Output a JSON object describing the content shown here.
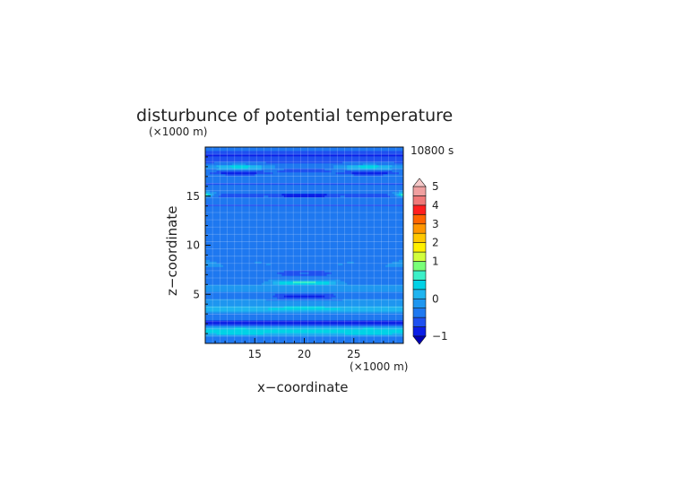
{
  "chart_data": {
    "type": "heatmap",
    "title": "disturbunce of potential temperature",
    "time_label": "10800 s",
    "xlabel": "x−coordinate",
    "ylabel": "z−coordinate",
    "x_unit": "(×1000 m)",
    "y_unit": "(×1000 m)",
    "xlim": [
      10,
      30
    ],
    "ylim": [
      0,
      20
    ],
    "xticks": [
      15,
      20,
      25
    ],
    "xtick_labels": [
      "15",
      "20",
      "25"
    ],
    "yticks": [
      5,
      10,
      15
    ],
    "ytick_labels": [
      "5",
      "10",
      "15"
    ],
    "grid": true,
    "colorbar": {
      "levels": [
        -1,
        -0.75,
        -0.5,
        -0.25,
        0,
        0.25,
        0.5,
        0.75,
        1,
        1.5,
        2,
        2.5,
        3,
        3.5,
        4,
        4.5,
        5
      ],
      "labels": [
        "−1",
        "0",
        "1",
        "2",
        "3",
        "4",
        "5"
      ],
      "label_values": [
        -1,
        0,
        1,
        2,
        3,
        4,
        5
      ],
      "colors": [
        "#0000b4",
        "#0a1ee6",
        "#1e50f0",
        "#1e78f0",
        "#1e96f0",
        "#1eb4f0",
        "#00d2e6",
        "#3cf0c8",
        "#78ff78",
        "#d2ff3c",
        "#fff000",
        "#ffc800",
        "#ff9600",
        "#ff6400",
        "#ff1e1e",
        "#f07878",
        "#f0a0a0",
        "#f5c8c8"
      ]
    },
    "field": {
      "background": -0.3,
      "bands": [
        {
          "z": 0.55,
          "v": -0.3,
          "th": 0.5,
          "shape": "flat"
        },
        {
          "z": 1.25,
          "v": 0.85,
          "th": 0.28,
          "shape": "sides"
        },
        {
          "z": 1.25,
          "v": 0.45,
          "th": 0.35,
          "shape": "flat"
        },
        {
          "z": 2.15,
          "v": -1.0,
          "th": 0.25,
          "shape": "flat"
        },
        {
          "z": 2.8,
          "v": -0.5,
          "th": 0.4,
          "shape": "flat"
        },
        {
          "z": 3.55,
          "v": 0.25,
          "th": 0.35,
          "shape": "flat"
        },
        {
          "z": 3.65,
          "v": 0.7,
          "th": 0.2,
          "shape": "center"
        },
        {
          "z": 4.1,
          "v": -0.15,
          "th": 0.4,
          "shape": "flat"
        },
        {
          "z": 4.85,
          "v": -0.85,
          "th": 0.32,
          "shape": "center"
        },
        {
          "z": 5.6,
          "v": -0.2,
          "th": 0.4,
          "shape": "flat"
        },
        {
          "z": 6.2,
          "v": 0.6,
          "th": 0.25,
          "shape": "center"
        },
        {
          "z": 7.2,
          "v": -0.65,
          "th": 0.35,
          "shape": "center"
        },
        {
          "z": 8.2,
          "v": -0.15,
          "th": 0.45,
          "shape": "flat"
        },
        {
          "z": 9.2,
          "v": -0.5,
          "th": 0.45,
          "shape": "arc",
          "d": 2.0
        },
        {
          "z": 10.5,
          "v": -0.35,
          "th": 0.45,
          "shape": "arc",
          "d": 2.2
        },
        {
          "z": 12.0,
          "v": -0.45,
          "th": 0.45,
          "shape": "arc",
          "d": 2.6
        },
        {
          "z": 13.6,
          "v": -0.35,
          "th": 0.4,
          "shape": "arc",
          "d": 2.6
        },
        {
          "z": 14.1,
          "v": -0.55,
          "th": 0.35,
          "shape": "flat"
        },
        {
          "z": 15.1,
          "v": -1.0,
          "th": 0.18,
          "shape": "center"
        },
        {
          "z": 15.1,
          "v": -0.75,
          "th": 0.22,
          "shape": "sides"
        },
        {
          "z": 15.2,
          "v": 0.6,
          "th": 0.22,
          "shape": "edges"
        },
        {
          "z": 16.3,
          "v": -0.55,
          "th": 0.3,
          "shape": "flat"
        },
        {
          "z": 17.4,
          "v": -1.0,
          "th": 0.22,
          "shape": "sides"
        },
        {
          "z": 17.6,
          "v": -0.6,
          "th": 0.35,
          "shape": "center"
        },
        {
          "z": 18.1,
          "v": 0.8,
          "th": 0.28,
          "shape": "sides"
        },
        {
          "z": 18.5,
          "v": -0.5,
          "th": 0.4,
          "shape": "flat"
        },
        {
          "z": 19.2,
          "v": -0.85,
          "th": 0.35,
          "shape": "flat"
        }
      ]
    }
  }
}
